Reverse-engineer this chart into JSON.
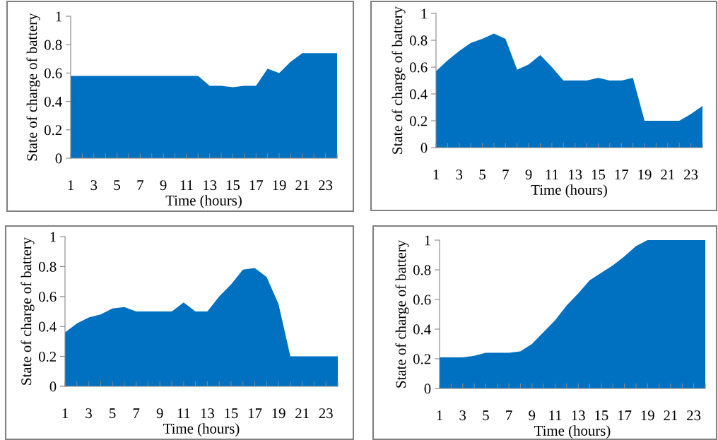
{
  "chart_data": [
    {
      "type": "area",
      "xlabel": "Time (hours)",
      "ylabel": "State of charge of battery",
      "categories": [
        "1",
        null,
        "3",
        null,
        "5",
        null,
        "7",
        null,
        "9",
        null,
        "11",
        null,
        "13",
        null,
        "15",
        null,
        "17",
        null,
        "19",
        null,
        "21",
        null,
        "23",
        null
      ],
      "series": [
        {
          "color": "#0070c0",
          "values": [
            0.58,
            0.58,
            0.58,
            0.58,
            0.58,
            0.58,
            0.58,
            0.58,
            0.58,
            0.58,
            0.58,
            0.58,
            0.51,
            0.51,
            0.5,
            0.51,
            0.51,
            0.63,
            0.6,
            0.68,
            0.74,
            0.74,
            0.74,
            0.74
          ]
        }
      ],
      "ylim": [
        0,
        1
      ],
      "yticks": [
        0,
        0.2,
        0.4,
        0.6,
        0.8,
        1
      ],
      "grid": false,
      "legend": false
    },
    {
      "type": "area",
      "xlabel": "Time (hours)",
      "ylabel": "State of charge of battery",
      "categories": [
        "1",
        null,
        "3",
        null,
        "5",
        null,
        "7",
        null,
        "9",
        null,
        "11",
        null,
        "13",
        null,
        "15",
        null,
        "17",
        null,
        "19",
        null,
        "21",
        null,
        "23",
        null
      ],
      "series": [
        {
          "color": "#0070c0",
          "values": [
            0.57,
            0.65,
            0.72,
            0.78,
            0.81,
            0.85,
            0.81,
            0.58,
            0.62,
            0.69,
            0.6,
            0.5,
            0.5,
            0.5,
            0.52,
            0.5,
            0.5,
            0.52,
            0.2,
            0.2,
            0.2,
            0.2,
            0.25,
            0.31
          ]
        }
      ],
      "ylim": [
        0,
        1
      ],
      "yticks": [
        0,
        0.2,
        0.4,
        0.6,
        0.8,
        1
      ],
      "grid": false,
      "legend": false
    },
    {
      "type": "area",
      "xlabel": "Time (hours)",
      "ylabel": "State of charge of battery",
      "categories": [
        "1",
        null,
        "3",
        null,
        "5",
        null,
        "7",
        null,
        "9",
        null,
        "11",
        null,
        "13",
        null,
        "15",
        null,
        "17",
        null,
        "19",
        null,
        "21",
        null,
        "23",
        null
      ],
      "series": [
        {
          "color": "#0070c0",
          "values": [
            0.36,
            0.42,
            0.46,
            0.48,
            0.52,
            0.53,
            0.5,
            0.5,
            0.5,
            0.5,
            0.56,
            0.5,
            0.5,
            0.6,
            0.68,
            0.78,
            0.79,
            0.73,
            0.55,
            0.2,
            0.2,
            0.2,
            0.2,
            0.2
          ]
        }
      ],
      "ylim": [
        0,
        1
      ],
      "yticks": [
        0,
        0.2,
        0.4,
        0.6,
        0.8,
        1
      ],
      "grid": false,
      "legend": false
    },
    {
      "type": "area",
      "xlabel": "Time (hours)",
      "ylabel": "State of charge of battery",
      "categories": [
        "1",
        null,
        "3",
        null,
        "5",
        null,
        "7",
        null,
        "9",
        null,
        "11",
        null,
        "13",
        null,
        "15",
        null,
        "17",
        null,
        "19",
        null,
        "21",
        null,
        "23",
        null
      ],
      "series": [
        {
          "color": "#0070c0",
          "values": [
            0.21,
            0.21,
            0.21,
            0.22,
            0.24,
            0.24,
            0.24,
            0.25,
            0.3,
            0.38,
            0.46,
            0.56,
            0.64,
            0.73,
            0.78,
            0.83,
            0.89,
            0.96,
            1.0,
            1.0,
            1.0,
            1.0,
            1.0,
            1.0
          ]
        }
      ],
      "ylim": [
        0,
        1
      ],
      "yticks": [
        0,
        0.2,
        0.4,
        0.6,
        0.8,
        1
      ],
      "grid": false,
      "legend": false
    }
  ]
}
